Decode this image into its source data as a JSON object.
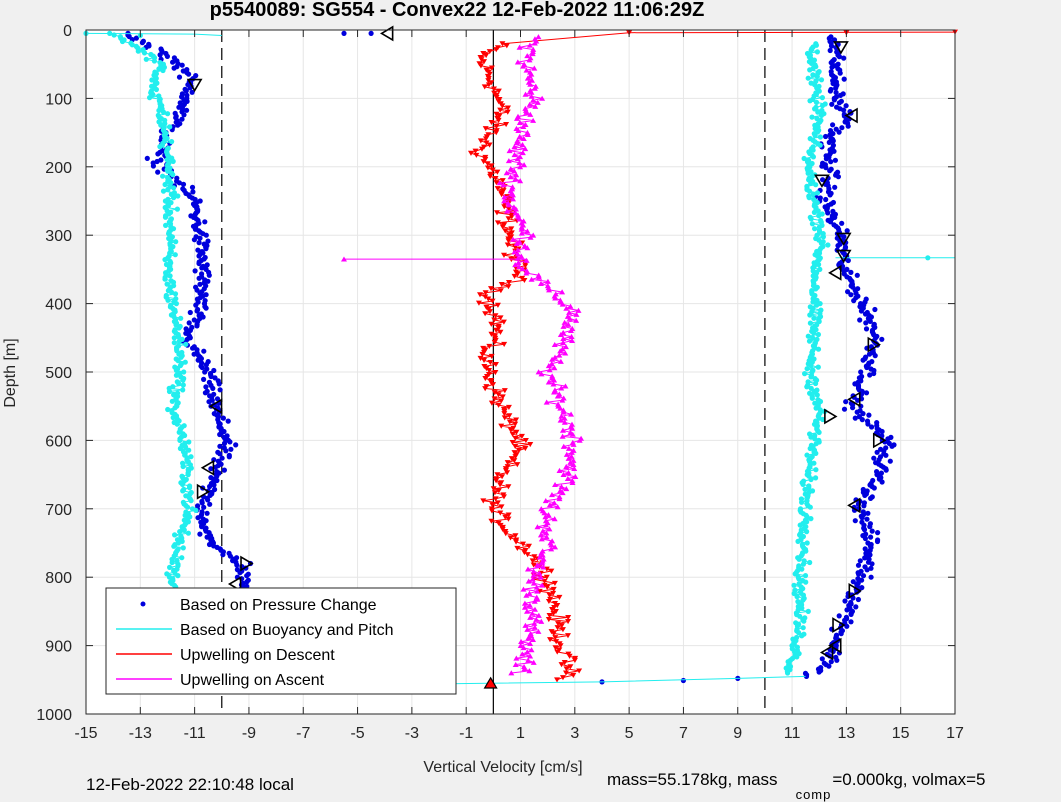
{
  "title": "p5540089: SG554 - Convex22 12-Feb-2022 11:06:29Z",
  "footer": {
    "local_time": "12-Feb-2022 22:10:48 local",
    "mass_text": "mass=55.178kg, mass",
    "mass_sub": "comp",
    "mass_tail": "=0.000kg, volmax=5"
  },
  "colors": {
    "pressure": "#0000dd",
    "buoyancy": "#22eeee",
    "descent": "#ff0000",
    "ascent": "#ff00ff",
    "marker_edge": "#000000",
    "apogee_fill": "#ff0000"
  },
  "chart_data": {
    "type": "scatter",
    "title": "p5540089: SG554 - Convex22 12-Feb-2022 11:06:29Z",
    "xlabel": "Vertical Velocity [cm/s]",
    "ylabel": "Depth [m]",
    "xlim": [
      -15,
      17
    ],
    "ylim": [
      0,
      1000
    ],
    "y_reversed": true,
    "xticks": [
      "-15",
      "-13",
      "-11",
      "-9",
      "-7",
      "-5",
      "-3",
      "-1",
      "1",
      "3",
      "5",
      "7",
      "9",
      "11",
      "13",
      "15",
      "17"
    ],
    "yticks": [
      "0",
      "100",
      "200",
      "300",
      "400",
      "500",
      "600",
      "700",
      "800",
      "900",
      "1000"
    ],
    "grid": true,
    "legend_location": "bottom-left",
    "reference_lines": [
      {
        "style": "solid",
        "x": 0
      },
      {
        "style": "dashed",
        "x": -10
      },
      {
        "style": "dashed",
        "x": 10
      }
    ],
    "series": [
      {
        "name": "Based on Pressure Change",
        "marker": "dot",
        "line": false,
        "points_descent": [
          [
            -13.5,
            5
          ],
          [
            -12.3,
            30
          ],
          [
            -11.3,
            60
          ],
          [
            -11.2,
            100
          ],
          [
            -12.0,
            150
          ],
          [
            -12.4,
            190
          ],
          [
            -11.0,
            250
          ],
          [
            -10.8,
            300
          ],
          [
            -10.7,
            350
          ],
          [
            -10.8,
            400
          ],
          [
            -11.3,
            450
          ],
          [
            -10.5,
            500
          ],
          [
            -10.3,
            550
          ],
          [
            -9.8,
            600
          ],
          [
            -10.3,
            650
          ],
          [
            -10.7,
            700
          ],
          [
            -10.5,
            750
          ],
          [
            -9.2,
            780
          ],
          [
            -9.3,
            820
          ],
          [
            -9.1,
            870
          ],
          [
            -9.2,
            920
          ],
          [
            -9.1,
            950
          ]
        ],
        "points_ascent": [
          [
            12.6,
            10
          ],
          [
            12.6,
            50
          ],
          [
            12.6,
            100
          ],
          [
            13.1,
            130
          ],
          [
            12.3,
            160
          ],
          [
            12.4,
            210
          ],
          [
            12.2,
            250
          ],
          [
            12.8,
            300
          ],
          [
            12.9,
            350
          ],
          [
            13.6,
            400
          ],
          [
            14.1,
            450
          ],
          [
            13.8,
            500
          ],
          [
            13.2,
            550
          ],
          [
            14.5,
            600
          ],
          [
            14.2,
            650
          ],
          [
            13.5,
            700
          ],
          [
            13.9,
            750
          ],
          [
            13.6,
            800
          ],
          [
            13.1,
            850
          ],
          [
            12.6,
            900
          ],
          [
            12.3,
            930
          ],
          [
            11.5,
            945
          ]
        ],
        "surface_points": [
          [
            -4.5,
            5
          ],
          [
            -5.5,
            5
          ],
          [
            -2,
            955
          ],
          [
            -3,
            956
          ],
          [
            4,
            953
          ],
          [
            7,
            951
          ],
          [
            9,
            948
          ]
        ]
      },
      {
        "name": "Based on Buoyancy and Pitch",
        "marker": "dot",
        "line": true,
        "points_descent": [
          [
            -14.0,
            5
          ],
          [
            -12.2,
            50
          ],
          [
            -12.6,
            80
          ],
          [
            -12.2,
            120
          ],
          [
            -12.0,
            180
          ],
          [
            -11.9,
            250
          ],
          [
            -11.9,
            300
          ],
          [
            -12.0,
            350
          ],
          [
            -11.8,
            400
          ],
          [
            -11.6,
            450
          ],
          [
            -11.5,
            500
          ],
          [
            -11.8,
            550
          ],
          [
            -11.4,
            600
          ],
          [
            -11.3,
            650
          ],
          [
            -11.2,
            700
          ],
          [
            -11.6,
            750
          ],
          [
            -11.8,
            800
          ],
          [
            -11.5,
            850
          ],
          [
            -11.0,
            900
          ],
          [
            -10.5,
            940
          ]
        ],
        "points_ascent": [
          [
            11.8,
            20
          ],
          [
            11.8,
            80
          ],
          [
            12.0,
            120
          ],
          [
            11.6,
            200
          ],
          [
            11.8,
            250
          ],
          [
            12.1,
            300
          ],
          [
            11.9,
            350
          ],
          [
            11.8,
            400
          ],
          [
            11.8,
            450
          ],
          [
            11.7,
            500
          ],
          [
            12.0,
            560
          ],
          [
            11.8,
            600
          ],
          [
            11.6,
            650
          ],
          [
            11.5,
            700
          ],
          [
            11.5,
            750
          ],
          [
            11.3,
            800
          ],
          [
            11.3,
            850
          ],
          [
            11.2,
            900
          ],
          [
            10.9,
            940
          ]
        ],
        "surface_points": [
          [
            -15,
            5
          ],
          [
            -13,
            8
          ],
          [
            16,
            333
          ]
        ]
      },
      {
        "name": "Upwelling on Descent",
        "marker": "triangle-down",
        "line": true,
        "points": [
          [
            0.3,
            20
          ],
          [
            -0.5,
            40
          ],
          [
            0.0,
            80
          ],
          [
            0.3,
            120
          ],
          [
            -0.5,
            180
          ],
          [
            0.2,
            220
          ],
          [
            0.5,
            270
          ],
          [
            0.7,
            320
          ],
          [
            1.0,
            360
          ],
          [
            -0.2,
            390
          ],
          [
            0.2,
            430
          ],
          [
            -0.3,
            480
          ],
          [
            0.1,
            530
          ],
          [
            0.5,
            570
          ],
          [
            1.0,
            600
          ],
          [
            0.3,
            650
          ],
          [
            0.0,
            700
          ],
          [
            0.5,
            730
          ],
          [
            1.5,
            770
          ],
          [
            2.0,
            800
          ],
          [
            2.3,
            850
          ],
          [
            2.5,
            900
          ],
          [
            2.8,
            940
          ],
          [
            2.5,
            950
          ]
        ],
        "surface_points": [
          [
            17,
            3
          ],
          [
            13,
            4
          ],
          [
            5,
            4
          ]
        ]
      },
      {
        "name": "Upwelling on Ascent",
        "marker": "triangle-up",
        "line": true,
        "points": [
          [
            1.5,
            10
          ],
          [
            1.2,
            50
          ],
          [
            1.5,
            100
          ],
          [
            1.0,
            150
          ],
          [
            0.8,
            200
          ],
          [
            0.6,
            250
          ],
          [
            1.2,
            300
          ],
          [
            1.0,
            340
          ],
          [
            2.0,
            380
          ],
          [
            3.0,
            410
          ],
          [
            2.5,
            460
          ],
          [
            2.0,
            500
          ],
          [
            2.5,
            550
          ],
          [
            3.0,
            600
          ],
          [
            2.8,
            650
          ],
          [
            2.0,
            700
          ],
          [
            2.0,
            750
          ],
          [
            1.5,
            800
          ],
          [
            1.5,
            850
          ],
          [
            1.2,
            900
          ],
          [
            1.0,
            940
          ]
        ],
        "surface_points": [
          [
            -5.5,
            335
          ]
        ]
      }
    ],
    "apogee_marker": {
      "x": -0.1,
      "y": 955
    },
    "apogee_marker_bottom": {
      "x": -9.1,
      "y": 955
    },
    "legend": [
      "Based on Pressure Change",
      "Based on Buoyancy and Pitch",
      "Upwelling on Descent",
      "Upwelling on Ascent"
    ],
    "open_triangle_markers": [
      {
        "x": -3.9,
        "y": 5,
        "dir": "left"
      },
      {
        "x": -11.0,
        "y": 80,
        "dir": "down"
      },
      {
        "x": -10.2,
        "y": 550,
        "dir": "left"
      },
      {
        "x": -10.5,
        "y": 640,
        "dir": "left"
      },
      {
        "x": -10.7,
        "y": 675,
        "dir": "right"
      },
      {
        "x": -9.1,
        "y": 780,
        "dir": "right"
      },
      {
        "x": -9.5,
        "y": 810,
        "dir": "left"
      },
      {
        "x": -9.2,
        "y": 830,
        "dir": "down"
      },
      {
        "x": 12.8,
        "y": 25,
        "dir": "down"
      },
      {
        "x": 13.2,
        "y": 125,
        "dir": "left"
      },
      {
        "x": 12.1,
        "y": 220,
        "dir": "down"
      },
      {
        "x": 12.9,
        "y": 305,
        "dir": "down"
      },
      {
        "x": 12.9,
        "y": 330,
        "dir": "down"
      },
      {
        "x": 12.6,
        "y": 355,
        "dir": "left"
      },
      {
        "x": 14.0,
        "y": 460,
        "dir": "right"
      },
      {
        "x": 13.3,
        "y": 540,
        "dir": "left"
      },
      {
        "x": 12.4,
        "y": 565,
        "dir": "right"
      },
      {
        "x": 14.2,
        "y": 600,
        "dir": "right"
      },
      {
        "x": 13.3,
        "y": 695,
        "dir": "left"
      },
      {
        "x": 13.3,
        "y": 820,
        "dir": "right"
      },
      {
        "x": 12.7,
        "y": 870,
        "dir": "right"
      },
      {
        "x": 12.6,
        "y": 900,
        "dir": "left"
      },
      {
        "x": 12.3,
        "y": 910,
        "dir": "left"
      }
    ]
  }
}
